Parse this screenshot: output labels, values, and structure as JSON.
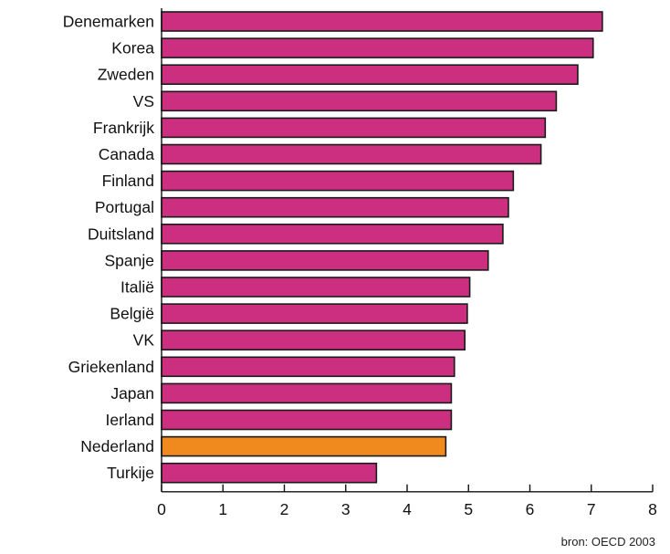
{
  "chart_data": {
    "type": "bar",
    "orientation": "horizontal",
    "categories": [
      "Denemarken",
      "Korea",
      "Zweden",
      "VS",
      "Frankrijk",
      "Canada",
      "Finland",
      "Portugal",
      "Duitsland",
      "Spanje",
      "Italië",
      "België",
      "VK",
      "Griekenland",
      "Japan",
      "Ierland",
      "Nederland",
      "Turkije"
    ],
    "values": [
      7.18,
      7.03,
      6.78,
      6.43,
      6.25,
      6.18,
      5.73,
      5.65,
      5.56,
      5.32,
      5.02,
      4.98,
      4.94,
      4.77,
      4.72,
      4.72,
      4.63,
      3.5
    ],
    "highlight": "Nederland",
    "colors": {
      "bar": "#cc2f7f",
      "highlight": "#f08a1e",
      "border": "#1a1a1a"
    },
    "xlim": [
      0,
      8
    ],
    "xticks": [
      "0",
      "1",
      "2",
      "3",
      "4",
      "5",
      "6",
      "7",
      "8"
    ],
    "grid": false
  },
  "source": "bron: OECD 2003"
}
